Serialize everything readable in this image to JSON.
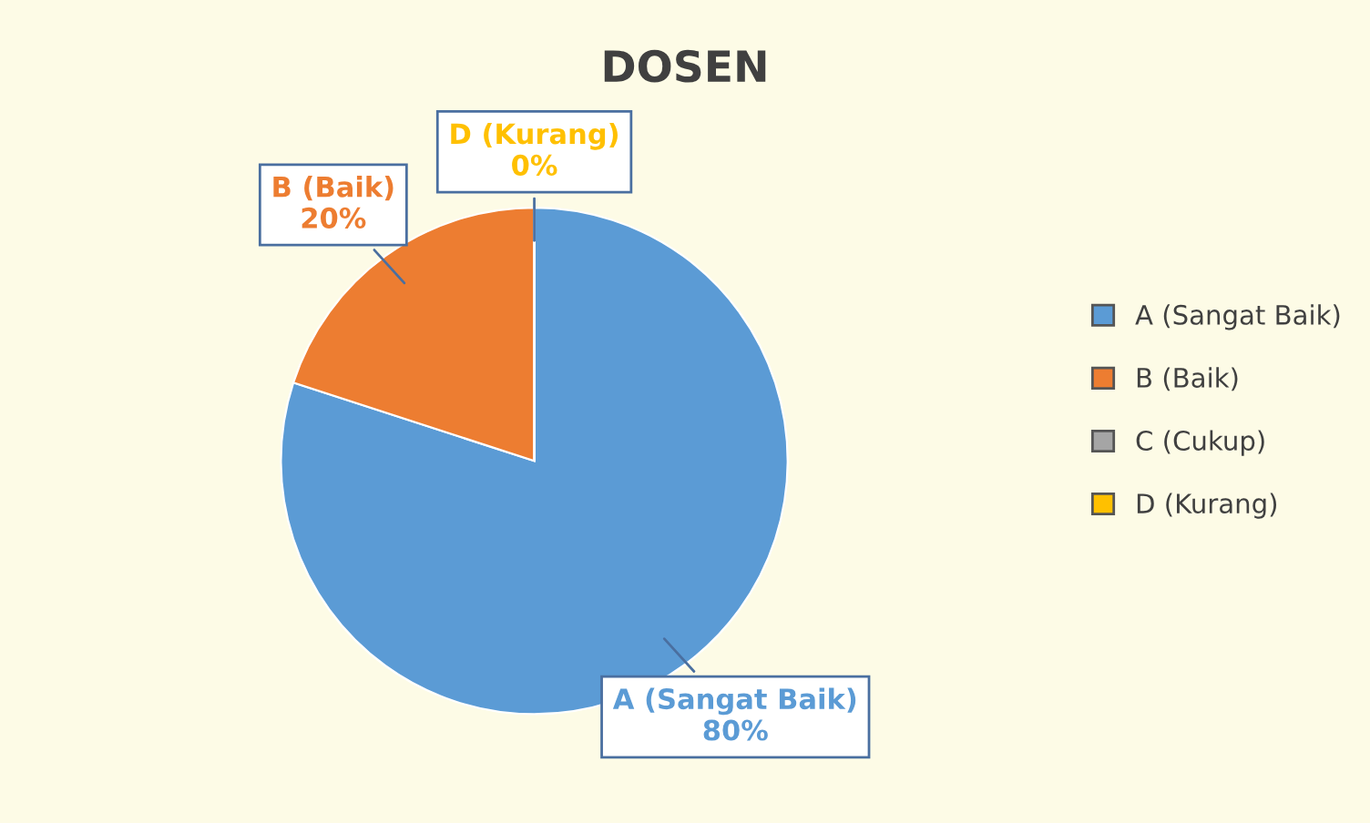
{
  "chart_data": {
    "type": "pie",
    "title": "DOSEN",
    "categories": [
      "A (Sangat Baik)",
      "B (Baik)",
      "C (Cukup)",
      "D (Kurang)"
    ],
    "values": [
      80,
      20,
      0,
      0
    ],
    "colors": [
      "#5b9bd5",
      "#ed7d31",
      "#a5a5a5",
      "#ffc000"
    ],
    "value_labels": [
      "80%",
      "20%",
      null,
      "0%"
    ],
    "legend": "right"
  }
}
